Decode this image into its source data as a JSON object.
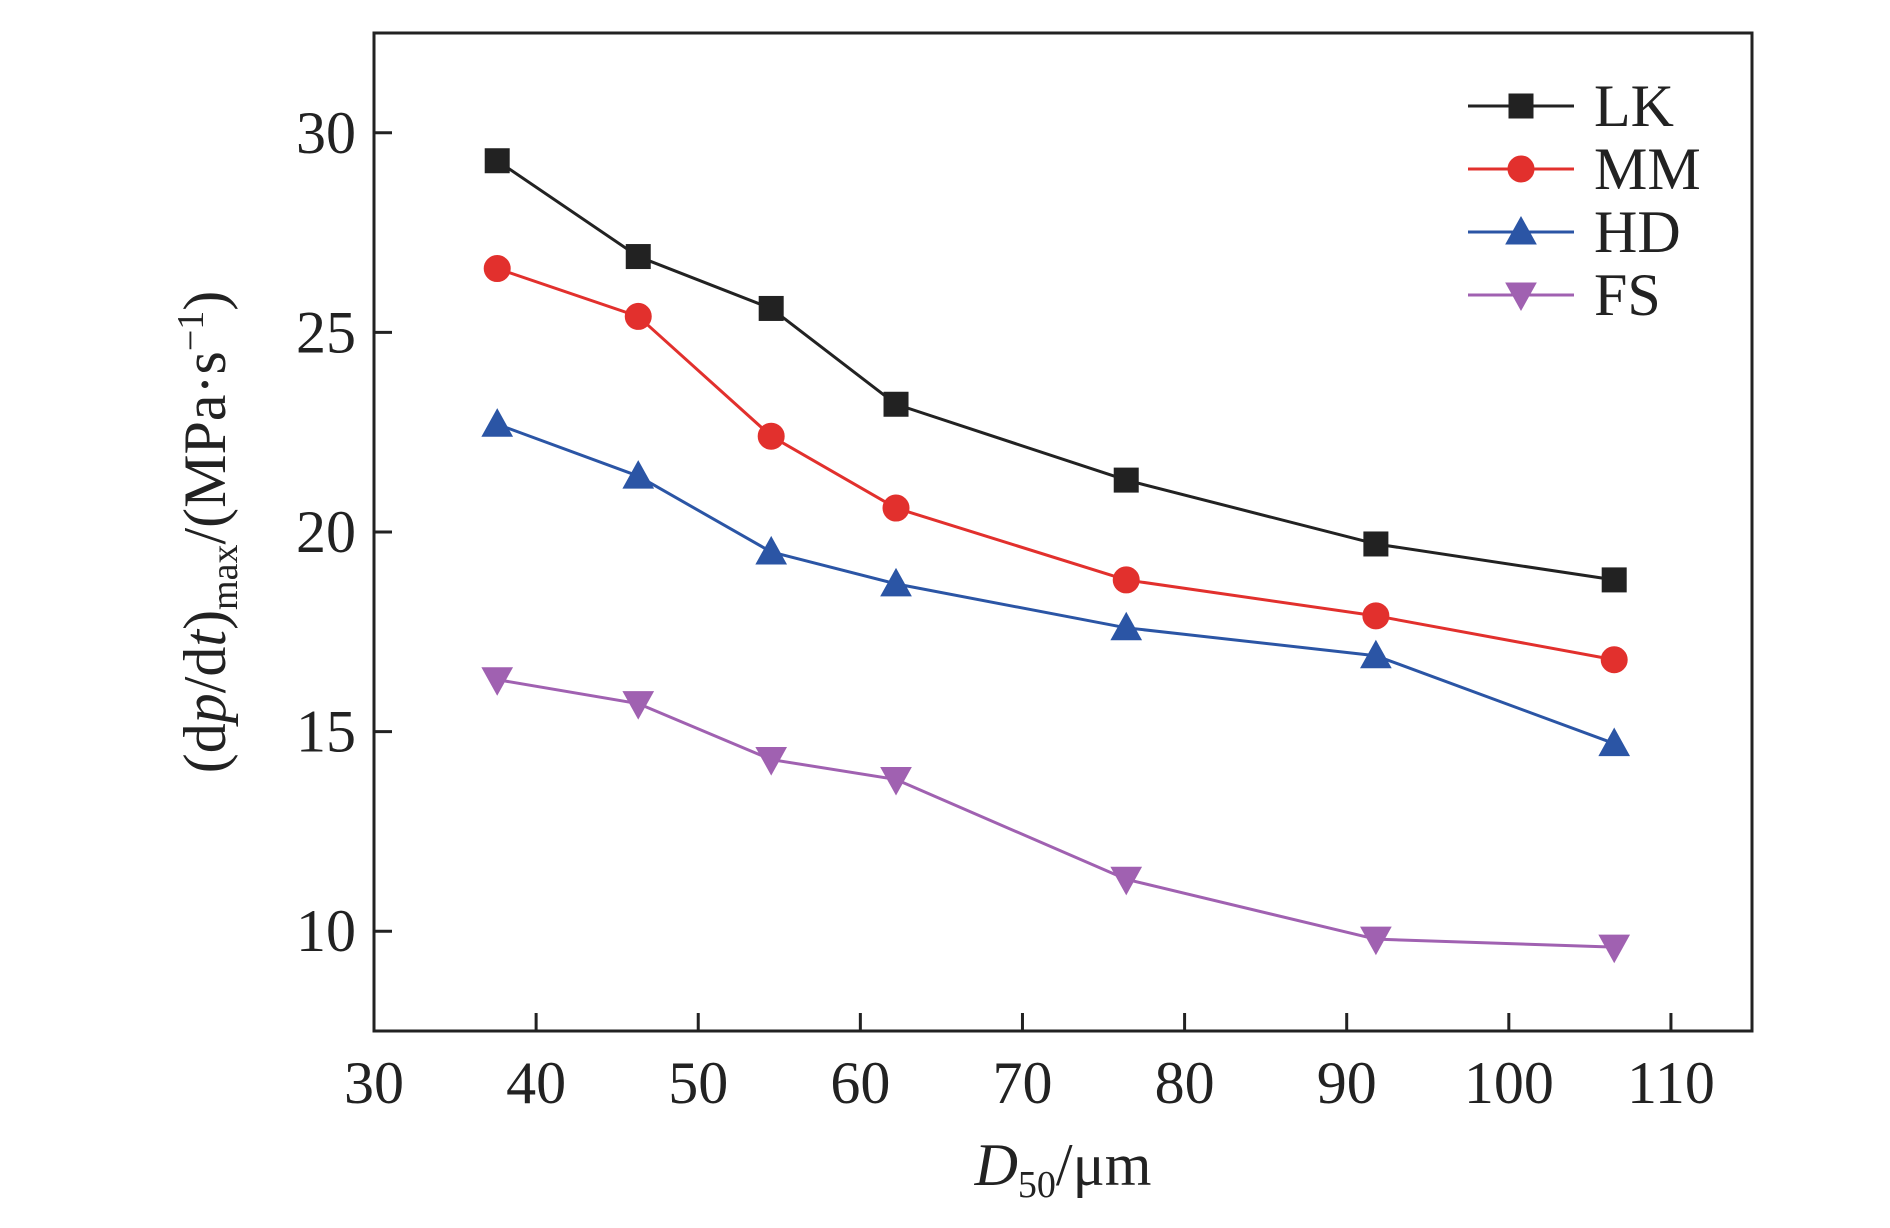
{
  "chart_data": {
    "type": "line",
    "title": "",
    "xlabel": {
      "var": "D",
      "sub": "50",
      "unit": "/μm"
    },
    "ylabel": {
      "open": "(d",
      "p": "p",
      "slash": "/d",
      "t": "t",
      "close": ")",
      "sub": "max",
      "unit": "/(MPa·s",
      "sup": "−1",
      "end": ")"
    },
    "xlim": [
      30,
      115
    ],
    "ylim": [
      7.5,
      32.5
    ],
    "xticks": [
      30,
      40,
      50,
      60,
      70,
      80,
      90,
      100,
      110
    ],
    "yticks": [
      10,
      15,
      20,
      25,
      30
    ],
    "grid": false,
    "legend_position": "top-right",
    "x": [
      37.6,
      46.3,
      54.5,
      62.2,
      76.4,
      91.8,
      106.5
    ],
    "series": [
      {
        "name": "LK",
        "color": "#222222",
        "marker": "square",
        "values": [
          29.3,
          26.9,
          25.6,
          23.2,
          21.3,
          19.7,
          18.8
        ]
      },
      {
        "name": "MM",
        "color": "#e2302d",
        "marker": "circle",
        "values": [
          26.6,
          25.4,
          22.4,
          20.6,
          18.8,
          17.9,
          16.8
        ]
      },
      {
        "name": "HD",
        "color": "#2b55a5",
        "marker": "triangle-up",
        "values": [
          22.7,
          21.4,
          19.5,
          18.7,
          17.6,
          16.9,
          14.7
        ]
      },
      {
        "name": "FS",
        "color": "#a061b1",
        "marker": "triangle-down",
        "values": [
          16.3,
          15.7,
          14.3,
          13.8,
          11.3,
          9.8,
          9.6
        ]
      }
    ]
  }
}
